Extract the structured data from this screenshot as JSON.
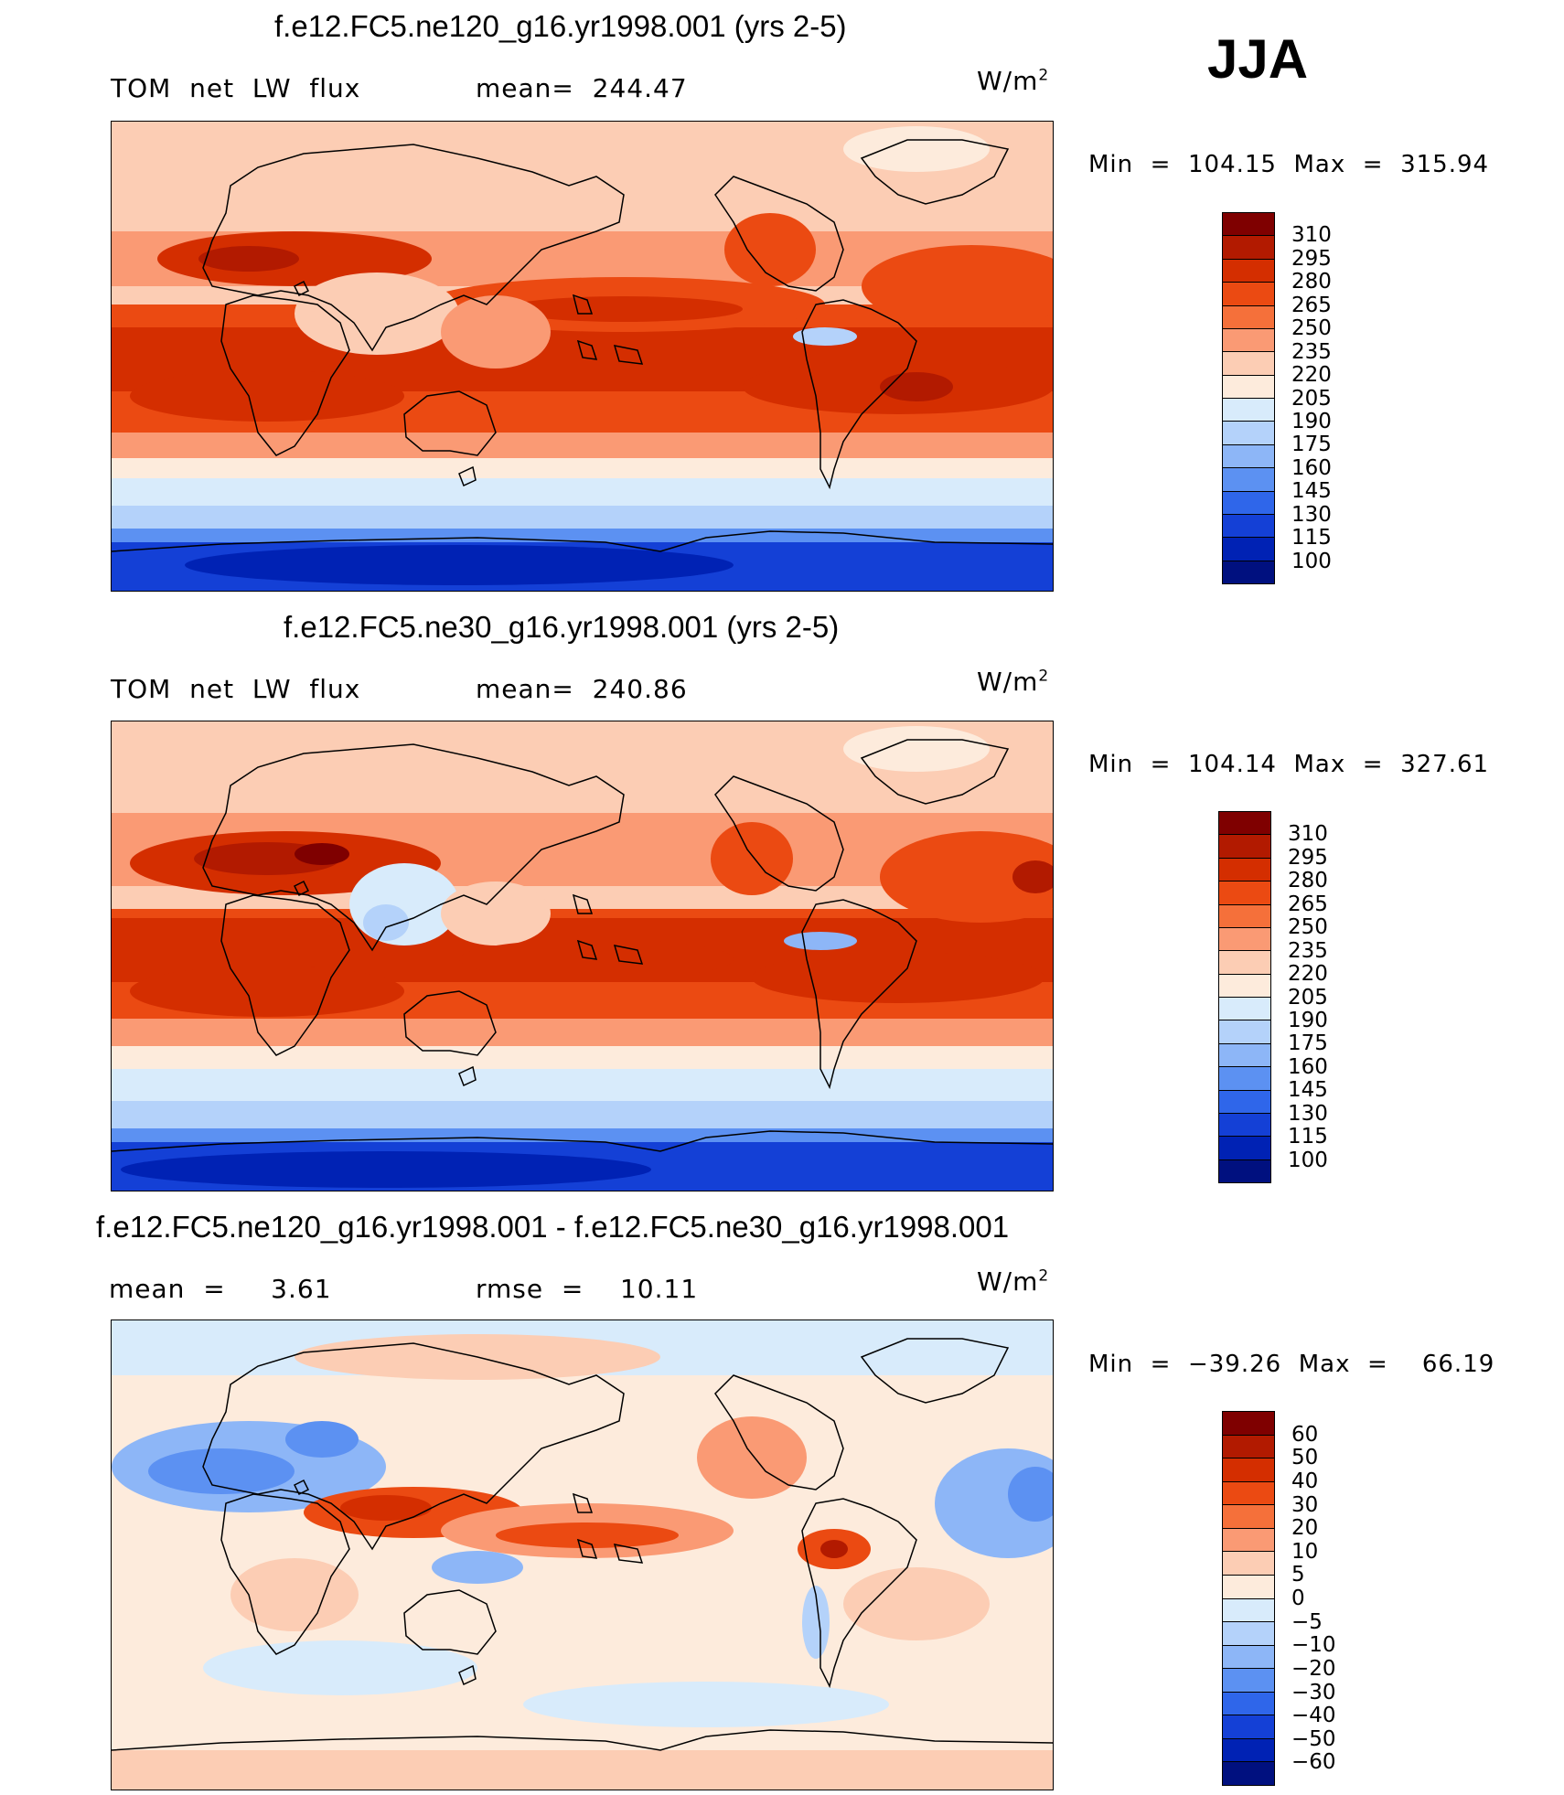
{
  "season": "JJA",
  "panels": [
    {
      "title": "f.e12.FC5.ne120_g16.yr1998.001 (yrs 2-5)",
      "left_label": "TOM  net  LW  flux",
      "mid_label": "mean=  244.47",
      "units": "W/m",
      "units_sup": "2",
      "minmax": "Min  =  104.15  Max  =  315.94",
      "levels": [
        "310",
        "295",
        "280",
        "265",
        "250",
        "235",
        "220",
        "205",
        "190",
        "175",
        "160",
        "145",
        "130",
        "115",
        "100"
      ],
      "colors": [
        "#7f0000",
        "#b21a00",
        "#d42e00",
        "#eb4a12",
        "#f5703a",
        "#fa9a74",
        "#fccdb4",
        "#fdebdc",
        "#d8ebfb",
        "#b4d2fa",
        "#8db6f7",
        "#5c91f2",
        "#2f66ea",
        "#1440d6",
        "#0022b4",
        "#00107f"
      ]
    },
    {
      "title": "f.e12.FC5.ne30_g16.yr1998.001 (yrs 2-5)",
      "left_label": "TOM  net  LW  flux",
      "mid_label": "mean=  240.86",
      "units": "W/m",
      "units_sup": "2",
      "minmax": "Min  =  104.14  Max  =  327.61",
      "levels": [
        "310",
        "295",
        "280",
        "265",
        "250",
        "235",
        "220",
        "205",
        "190",
        "175",
        "160",
        "145",
        "130",
        "115",
        "100"
      ],
      "colors": [
        "#7f0000",
        "#b21a00",
        "#d42e00",
        "#eb4a12",
        "#f5703a",
        "#fa9a74",
        "#fccdb4",
        "#fdebdc",
        "#d8ebfb",
        "#b4d2fa",
        "#8db6f7",
        "#5c91f2",
        "#2f66ea",
        "#1440d6",
        "#0022b4",
        "#00107f"
      ]
    },
    {
      "title": "f.e12.FC5.ne120_g16.yr1998.001 - f.e12.FC5.ne30_g16.yr1998.001",
      "left_label": "mean  =     3.61",
      "mid_label": "rmse  =    10.11",
      "units": "W/m",
      "units_sup": "2",
      "minmax": "Min  =  −39.26  Max  =    66.19",
      "levels": [
        "60",
        "50",
        "40",
        "30",
        "20",
        "10",
        "5",
        "0",
        "−5",
        "−10",
        "−20",
        "−30",
        "−40",
        "−50",
        "−60"
      ],
      "colors": [
        "#7f0000",
        "#b21a00",
        "#d42e00",
        "#eb4a12",
        "#f5703a",
        "#fa9a74",
        "#fccdb4",
        "#fdebdc",
        "#d8ebfb",
        "#b4d2fa",
        "#8db6f7",
        "#5c91f2",
        "#2f66ea",
        "#1440d6",
        "#0022b4",
        "#00107f"
      ]
    }
  ]
}
